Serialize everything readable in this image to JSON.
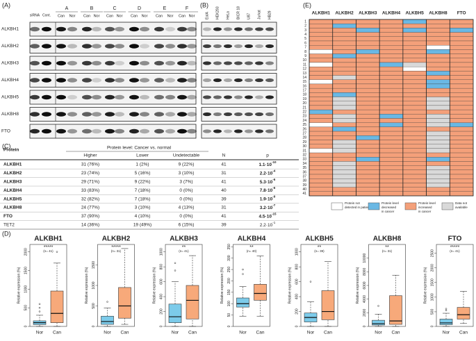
{
  "panel_a": {
    "label": "(A)",
    "control_labels": [
      "siRNA",
      "Cont."
    ],
    "patient_labels": [
      "A",
      "B",
      "C",
      "D",
      "E",
      "F"
    ],
    "lane_labels": [
      [
        "Can",
        "Nor"
      ],
      [
        "Can",
        "Nor"
      ],
      [
        "Can",
        "Nor"
      ],
      [
        "Can",
        "Nor"
      ],
      [
        "Can",
        "Nor"
      ],
      [
        "Can",
        "Nor"
      ]
    ],
    "row_labels": [
      "ALKBH1",
      "ALKBH2",
      "ALKBH3",
      "ALKBH4",
      "ALKBH5",
      "ALKBH8",
      "FTO"
    ]
  },
  "panel_b": {
    "label": "(B)",
    "cell_lines": [
      "EoIA",
      "HEK293",
      "HeLa",
      "BICR 18",
      "U87",
      "Jurkat",
      "HB29"
    ]
  },
  "panel_c": {
    "label": "(C)",
    "header": {
      "protein": "Protein",
      "group": "Protein level: Cancer vs. normal",
      "higher": "Higher",
      "lower": "Lower",
      "undetectable": "Undetectable",
      "n": "N",
      "p": "p"
    },
    "rows": [
      {
        "protein": "ALKBH1",
        "higher": "31 (76%)",
        "lower": "1 (2%)",
        "undetectable": "9 (22%)",
        "n": "41",
        "p_base": "1.1·10",
        "p_exp": "-10"
      },
      {
        "protein": "ALKBH2",
        "higher": "23 (74%)",
        "lower": "5 (16%)",
        "undetectable": "3 (10%)",
        "n": "31",
        "p_base": "2.2·10",
        "p_exp": "-4"
      },
      {
        "protein": "ALKBH3",
        "higher": "29 (71%)",
        "lower": "9 (22%)",
        "undetectable": "3 (7%)",
        "n": "41",
        "p_base": "5.3·10",
        "p_exp": "-6"
      },
      {
        "protein": "ALKBH4",
        "higher": "33 (83%)",
        "lower": "7 (18%)",
        "undetectable": "0 (0%)",
        "n": "40",
        "p_base": "7.8·10",
        "p_exp": "-6"
      },
      {
        "protein": "ALKBH5",
        "higher": "32 (82%)",
        "lower": "7 (18%)",
        "undetectable": "0 (0%)",
        "n": "39",
        "p_base": "1.9·10",
        "p_exp": "-9"
      },
      {
        "protein": "ALKBH8",
        "higher": "24 (77%)",
        "lower": "3 (10%)",
        "undetectable": "4 (13%)",
        "n": "31",
        "p_base": "3.2·10",
        "p_exp": "-7"
      },
      {
        "protein": "FTO",
        "higher": "37 (90%)",
        "lower": "4 (10%)",
        "undetectable": "0 (0%)",
        "n": "41",
        "p_base": "4.5·10",
        "p_exp": "-15"
      },
      {
        "protein": "TET2",
        "higher": "14 (36%)",
        "lower": "19 (49%)",
        "undetectable": "6 (15%)",
        "n": "39",
        "p_base": "2.2·10",
        "p_exp": "-1"
      }
    ],
    "bold_rows": 7
  },
  "panel_d_label": "(D)",
  "chart_data": [
    {
      "type": "box",
      "title": "ALKBH1",
      "significance": "*****",
      "annotation": "(n= 41)",
      "ylabel": "Relative expression (%)",
      "categories": [
        "Nor",
        "Can"
      ],
      "colors": [
        "#7ccbea",
        "#f7a97a"
      ],
      "whisker_low": [
        0,
        0
      ],
      "q1": [
        50,
        100
      ],
      "median": [
        100,
        350
      ],
      "q3": [
        150,
        950
      ],
      "whisker_high": [
        300,
        1700
      ],
      "outliers": [
        [
          400,
          500,
          600
        ],
        [
          2000
        ]
      ],
      "ylim": [
        0,
        2200
      ],
      "yticks": [
        0,
        500,
        1000,
        1500,
        2000
      ]
    },
    {
      "type": "box",
      "title": "ALKBH2",
      "significance": "*****",
      "annotation": "(n= 31)",
      "ylabel": "Relative expression (%)",
      "categories": [
        "Nor",
        "Can"
      ],
      "colors": [
        "#7ccbea",
        "#f7a97a"
      ],
      "whisker_low": [
        0,
        50
      ],
      "q1": [
        50,
        200
      ],
      "median": [
        120,
        500
      ],
      "q3": [
        250,
        950
      ],
      "whisker_high": [
        450,
        1900
      ],
      "outliers": [
        [
          600
        ],
        []
      ],
      "ylim": [
        0,
        2000
      ],
      "yticks": [
        0,
        500,
        1000,
        1500
      ]
    },
    {
      "type": "box",
      "title": "ALKBH3",
      "significance": "**",
      "annotation": "(n= 41)",
      "ylabel": "Relative expression (%)",
      "categories": [
        "Nor",
        "Can"
      ],
      "colors": [
        "#7ccbea",
        "#f7a97a"
      ],
      "whisker_low": [
        0,
        0
      ],
      "q1": [
        50,
        100
      ],
      "median": [
        130,
        350
      ],
      "q3": [
        300,
        550
      ],
      "whisker_high": [
        600,
        950
      ],
      "outliers": [
        [
          750,
          850
        ],
        []
      ],
      "ylim": [
        0,
        1100
      ],
      "yticks": [
        0,
        200,
        400,
        600,
        800,
        1000
      ]
    },
    {
      "type": "box",
      "title": "ALKBH4",
      "significance": "**",
      "annotation": "(n= 40)",
      "ylabel": "Relative expression (%)",
      "categories": [
        "Nor",
        "Can"
      ],
      "colors": [
        "#7ccbea",
        "#f7a97a"
      ],
      "whisker_low": [
        45,
        45
      ],
      "q1": [
        85,
        115
      ],
      "median": [
        100,
        145
      ],
      "q3": [
        125,
        185
      ],
      "whisker_high": [
        175,
        310
      ],
      "outliers": [
        [
          230,
          250
        ],
        []
      ],
      "ylim": [
        0,
        360
      ],
      "yticks": [
        0,
        50,
        100,
        150,
        200,
        250,
        300,
        350
      ]
    },
    {
      "type": "box",
      "title": "ALKBH5",
      "significance": "**",
      "annotation": "(n= 39)",
      "ylabel": "Relative expression (%)",
      "categories": [
        "Nor",
        "Can"
      ],
      "colors": [
        "#7ccbea",
        "#f7a97a"
      ],
      "whisker_low": [
        0,
        0
      ],
      "q1": [
        60,
        90
      ],
      "median": [
        120,
        200
      ],
      "q3": [
        180,
        480
      ],
      "whisker_high": [
        330,
        870
      ],
      "outliers": [
        [
          600
        ],
        []
      ],
      "ylim": [
        0,
        1100
      ],
      "yticks": [
        0,
        200,
        400,
        600,
        800,
        1000
      ]
    },
    {
      "type": "box",
      "title": "ALKBH8",
      "significance": "**",
      "annotation": "(n= 31)",
      "ylabel": "Relative expression (%)",
      "categories": [
        "Nor",
        "Can"
      ],
      "colors": [
        "#7ccbea",
        "#f7a97a"
      ],
      "whisker_low": [
        0,
        0
      ],
      "q1": [
        200,
        300
      ],
      "median": [
        400,
        800
      ],
      "q3": [
        900,
        4500
      ],
      "whisker_high": [
        1800,
        7500
      ],
      "outliers": [
        [
          3000
        ],
        []
      ],
      "ylim": [
        0,
        12000
      ],
      "yticks": [
        0,
        2000,
        4000,
        6000,
        8000,
        10000
      ]
    },
    {
      "type": "box",
      "title": "FTO",
      "significance": "*****",
      "annotation": "(n= 41)",
      "ylabel": "Relative expression (%)",
      "categories": [
        "Nor",
        "Can"
      ],
      "colors": [
        "#7ccbea",
        "#f7a97a"
      ],
      "whisker_low": [
        0,
        100
      ],
      "q1": [
        60,
        250
      ],
      "median": [
        120,
        400
      ],
      "q3": [
        250,
        650
      ],
      "whisker_high": [
        450,
        1200
      ],
      "outliers": [
        [
          550,
          600
        ],
        []
      ],
      "ylim": [
        0,
        2800
      ],
      "yticks": [
        0,
        500,
        1000,
        1500,
        2000,
        2500
      ]
    }
  ],
  "heatmap": {
    "label": "(E)",
    "columns": [
      "ALKBH1",
      "ALKBH2",
      "ALKBH3",
      "ALKBH4",
      "ALKBH5",
      "ALKBH8",
      "FTO"
    ],
    "row_labels": [
      1,
      2,
      3,
      4,
      5,
      6,
      7,
      8,
      9,
      10,
      11,
      12,
      13,
      14,
      15,
      16,
      17,
      18,
      19,
      20,
      21,
      22,
      23,
      24,
      25,
      26,
      27,
      28,
      29,
      30,
      31,
      32,
      33,
      34,
      35,
      36,
      37,
      38,
      39,
      40,
      41
    ],
    "state_colors": [
      "#ffffff",
      "#6ab8e4",
      "#f4a07a",
      "#d9d9d9"
    ],
    "rows": [
      [
        2,
        2,
        2,
        2,
        1,
        2,
        2
      ],
      [
        2,
        1,
        2,
        2,
        2,
        2,
        2
      ],
      [
        2,
        2,
        1,
        2,
        1,
        2,
        1
      ],
      [
        2,
        2,
        2,
        2,
        2,
        2,
        2
      ],
      [
        2,
        2,
        2,
        2,
        2,
        2,
        2
      ],
      [
        2,
        2,
        2,
        2,
        2,
        2,
        2
      ],
      [
        2,
        2,
        2,
        2,
        2,
        0,
        2
      ],
      [
        0,
        2,
        1,
        2,
        2,
        1,
        2
      ],
      [
        2,
        1,
        2,
        2,
        2,
        2,
        2
      ],
      [
        2,
        2,
        2,
        2,
        2,
        2,
        2
      ],
      [
        0,
        2,
        2,
        1,
        3,
        2,
        2
      ],
      [
        2,
        2,
        2,
        2,
        0,
        2,
        2
      ],
      [
        2,
        2,
        2,
        2,
        2,
        1,
        2
      ],
      [
        2,
        3,
        2,
        2,
        2,
        2,
        2
      ],
      [
        0,
        2,
        2,
        2,
        2,
        1,
        2
      ],
      [
        2,
        2,
        2,
        2,
        2,
        1,
        2
      ],
      [
        2,
        2,
        2,
        2,
        2,
        2,
        2
      ],
      [
        2,
        1,
        2,
        2,
        2,
        2,
        2
      ],
      [
        2,
        3,
        2,
        2,
        2,
        3,
        2
      ],
      [
        2,
        3,
        2,
        2,
        2,
        3,
        2
      ],
      [
        2,
        3,
        2,
        2,
        2,
        3,
        2
      ],
      [
        1,
        2,
        2,
        2,
        2,
        2,
        2
      ],
      [
        2,
        3,
        2,
        1,
        2,
        3,
        2
      ],
      [
        2,
        3,
        2,
        2,
        2,
        3,
        2
      ],
      [
        0,
        2,
        2,
        1,
        2,
        3,
        1
      ],
      [
        2,
        1,
        2,
        2,
        2,
        2,
        2
      ],
      [
        2,
        2,
        2,
        2,
        2,
        3,
        2
      ],
      [
        2,
        2,
        1,
        2,
        2,
        3,
        2
      ],
      [
        2,
        3,
        2,
        2,
        2,
        3,
        2
      ],
      [
        2,
        3,
        2,
        2,
        2,
        3,
        2
      ],
      [
        0,
        3,
        2,
        2,
        2,
        3,
        2
      ],
      [
        2,
        2,
        2,
        2,
        2,
        2,
        2
      ],
      [
        2,
        2,
        1,
        2,
        2,
        1,
        2
      ],
      [
        2,
        3,
        2,
        2,
        2,
        2,
        2
      ],
      [
        2,
        3,
        2,
        2,
        2,
        3,
        2
      ],
      [
        2,
        3,
        2,
        2,
        2,
        3,
        2
      ],
      [
        2,
        3,
        2,
        2,
        2,
        3,
        2
      ],
      [
        2,
        3,
        2,
        2,
        2,
        3,
        2
      ],
      [
        2,
        3,
        2,
        2,
        2,
        3,
        2
      ],
      [
        2,
        2,
        2,
        2,
        2,
        2,
        2
      ],
      [
        2,
        2,
        2,
        2,
        2,
        2,
        2
      ]
    ],
    "legend": [
      {
        "lines": [
          "Protein not",
          "detected in patient"
        ]
      },
      {
        "lines": [
          "Protein level",
          "decreased",
          "in cancer"
        ]
      },
      {
        "lines": [
          "Protein level",
          "increased",
          "in cancer"
        ]
      },
      {
        "lines": [
          "Data not",
          "available"
        ]
      }
    ]
  }
}
